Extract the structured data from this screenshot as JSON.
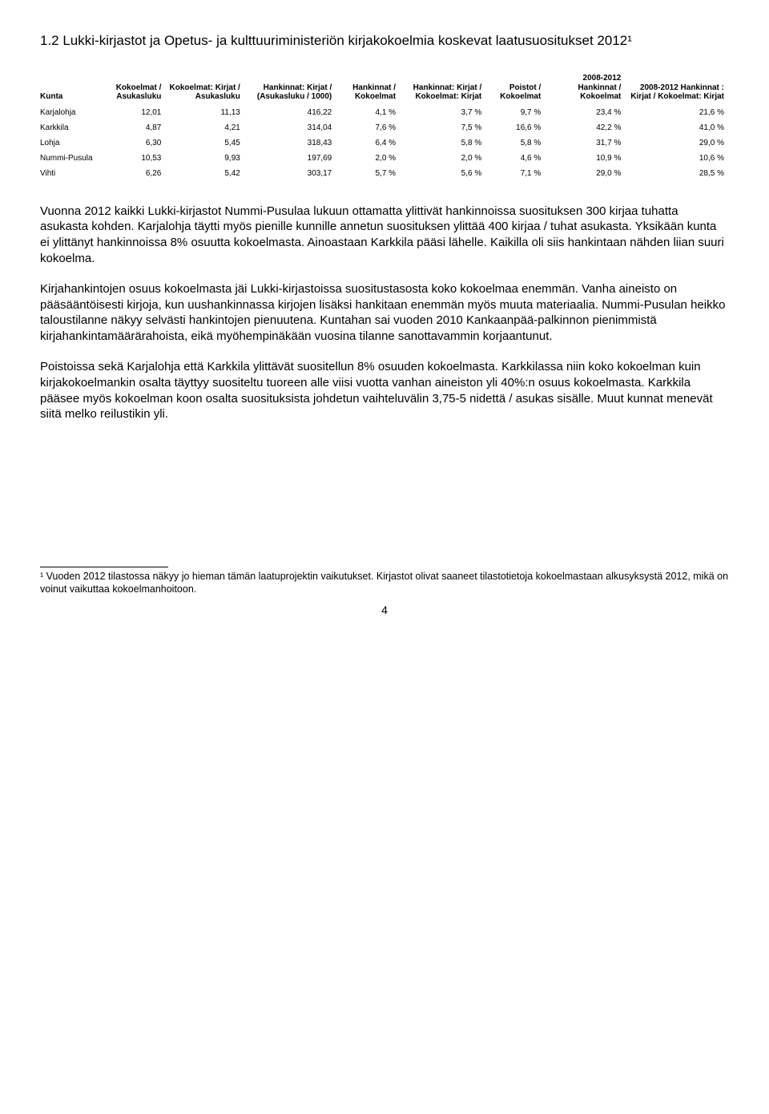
{
  "section_title": "1.2 Lukki-kirjastot ja Opetus- ja kulttuuriministeriön kirjakokoelmia koskevat laatusuositukset 2012¹",
  "table": {
    "columns": [
      "Kunta",
      "Kokoelmat / Asukasluku",
      "Kokoelmat: Kirjat / Asukasluku",
      "Hankinnat: Kirjat / (Asukasluku / 1000)",
      "Hankinnat / Kokoelmat",
      "Hankinnat: Kirjat / Kokoelmat: Kirjat",
      "Poistot / Kokoelmat",
      "2008-2012 Hankinnat / Kokoelmat",
      "2008-2012 Hankinnat : Kirjat / Kokoelmat: Kirjat"
    ],
    "col_align": [
      "left",
      "right",
      "right",
      "right",
      "right",
      "right",
      "right",
      "right",
      "right"
    ],
    "rows": [
      [
        "Karjalohja",
        "12,01",
        "11,13",
        "416,22",
        "4,1 %",
        "3,7 %",
        "9,7 %",
        "23,4 %",
        "21,6 %"
      ],
      [
        "Karkkila",
        "4,87",
        "4,21",
        "314,04",
        "7,6 %",
        "7,5 %",
        "16,6 %",
        "42,2 %",
        "41,0 %"
      ],
      [
        "Lohja",
        "6,30",
        "5,45",
        "318,43",
        "6,4 %",
        "5,8 %",
        "5,8 %",
        "31,7 %",
        "29,0 %"
      ],
      [
        "Nummi-Pusula",
        "10,53",
        "9,93",
        "197,69",
        "2,0 %",
        "2,0 %",
        "4,6 %",
        "10,9 %",
        "10,6 %"
      ],
      [
        "Vihti",
        "6,26",
        "5,42",
        "303,17",
        "5,7 %",
        "5,6 %",
        "7,1 %",
        "29,0 %",
        "28,5 %"
      ]
    ]
  },
  "paragraphs": [
    "Vuonna 2012 kaikki Lukki-kirjastot Nummi-Pusulaa lukuun ottamatta ylittivät hankinnoissa suosituksen 300 kirjaa tuhatta asukasta kohden. Karjalohja täytti myös pienille kunnille annetun suosituksen ylittää 400 kirjaa / tuhat asukasta. Yksikään kunta ei ylittänyt hankinnoissa 8% osuutta kokoelmasta. Ainoastaan Karkkila pääsi lähelle. Kaikilla oli siis hankintaan nähden liian suuri kokoelma.",
    "Kirjahankintojen osuus kokoelmasta jäi Lukki-kirjastoissa suositustasosta koko kokoelmaa enemmän. Vanha aineisto on pääsääntöisesti kirjoja, kun uushankinnassa kirjojen lisäksi hankitaan enemmän myös muuta materiaalia. Nummi-Pusulan heikko taloustilanne näkyy selvästi hankintojen pienuutena. Kuntahan sai vuoden 2010 Kankaanpää-palkinnon pienimmistä kirjahankintamäärärahoista, eikä myöhempinäkään vuosina tilanne sanottavammin korjaantunut.",
    "Poistoissa sekä Karjalohja että Karkkila ylittävät suositellun 8% osuuden kokoelmasta. Karkkilassa niin koko kokoelman kuin kirjakokoelmankin osalta täyttyy suositeltu tuoreen alle viisi vuotta vanhan aineiston yli 40%:n osuus kokoelmasta. Karkkila pääsee myös kokoelman koon osalta suosituksista johdetun vaihteluvälin 3,75-5 nidettä / asukas sisälle. Muut kunnat menevät siitä melko reilustikin yli."
  ],
  "footnote": "¹ Vuoden 2012 tilastossa näkyy jo hieman tämän laatuprojektin vaikutukset. Kirjastot olivat saaneet tilastotietoja kokoelmastaan alkusyksystä 2012, mikä on voinut vaikuttaa kokoelmanhoitoon.",
  "page_number": "4"
}
